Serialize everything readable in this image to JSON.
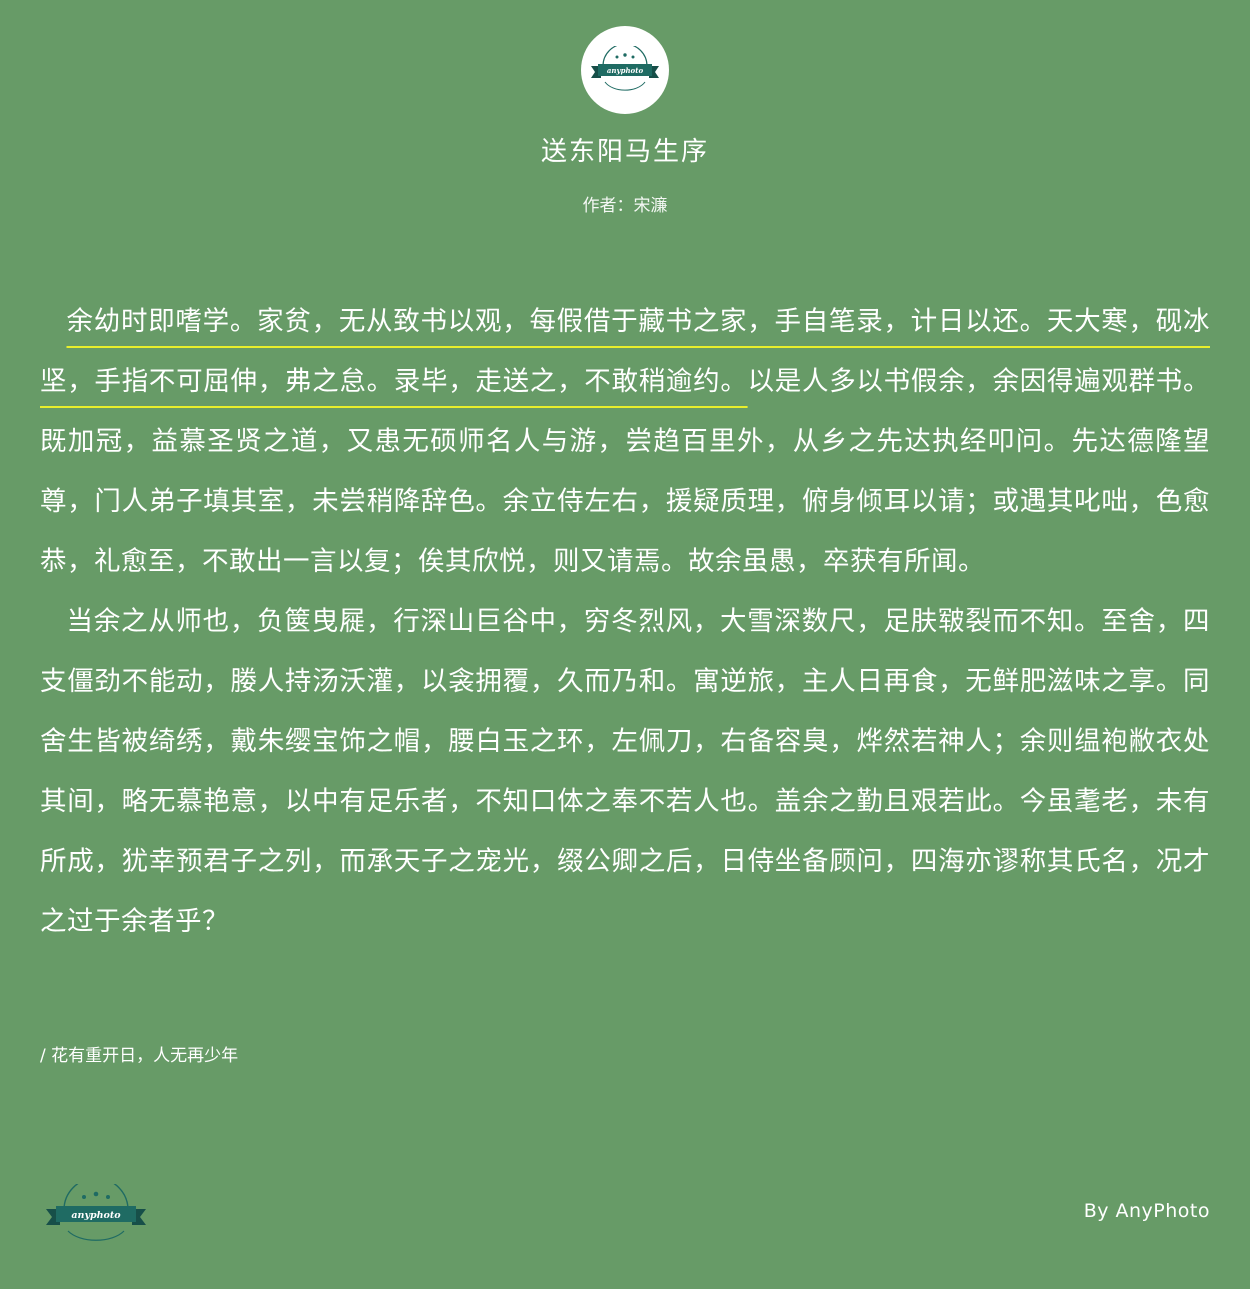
{
  "header": {
    "logo_text": "anyphoto",
    "title": "送东阳马生序",
    "author_label": "作者：",
    "author_name": "宋濂"
  },
  "body": {
    "paragraph1_highlight": "余幼时即嗜学。家贫，无从致书以观，每假借于藏书之家，手自笔录，计日以还。天大寒，砚冰坚，手指不可屈伸，弗之怠。录毕，走送之，不敢稍逾约。",
    "paragraph1_rest": "以是人多以书假余，余因得遍观群书。既加冠，益慕圣贤之道，又患无硕师名人与游，尝趋百里外，从乡之先达执经叩问。先达德隆望尊，门人弟子填其室，未尝稍降辞色。余立侍左右，援疑质理，俯身倾耳以请；或遇其叱咄，色愈恭，礼愈至，不敢出一言以复；俟其欣悦，则又请焉。故余虽愚，卒获有所闻。",
    "paragraph2": "当余之从师也，负箧曳屣，行深山巨谷中，穷冬烈风，大雪深数尺，足肤皲裂而不知。至舍，四支僵劲不能动，媵人持汤沃灌，以衾拥覆，久而乃和。寓逆旅，主人日再食，无鲜肥滋味之享。同舍生皆被绮绣，戴朱缨宝饰之帽，腰白玉之环，左佩刀，右备容臭，烨然若神人；余则缊袍敝衣处其间，略无慕艳意，以中有足乐者，不知口体之奉不若人也。盖余之勤且艰若此。今虽耄老，未有所成，犹幸预君子之列，而承天子之宠光，缀公卿之后，日侍坐备顾问，四海亦谬称其氏名，况才之过于余者乎？"
  },
  "footer": {
    "quote": "/ 花有重开日，人无再少年",
    "logo_text": "anyphoto",
    "byline": "By AnyPhoto"
  },
  "colors": {
    "background": "#679b67",
    "text": "#ffffff",
    "underline": "#e8ef2c",
    "logo_ribbon": "#1f6b63"
  }
}
